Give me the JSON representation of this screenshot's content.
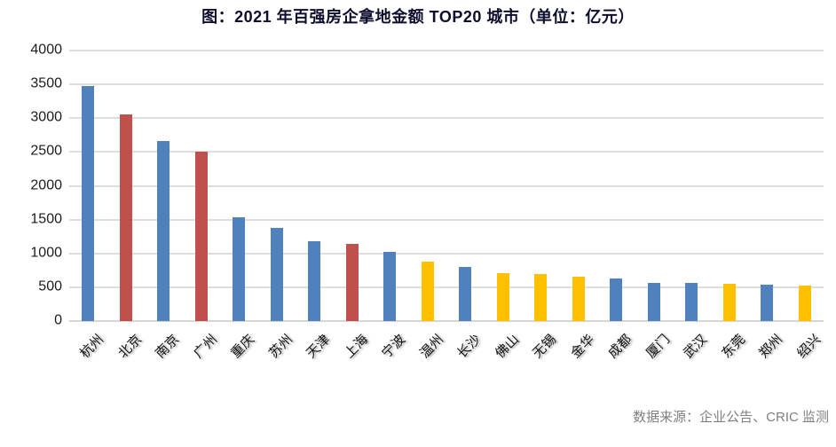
{
  "title": "图：2021 年百强房企拿地金额 TOP20 城市（单位：亿元）",
  "footer": {
    "source": "数据来源：企业公告、CRIC 监测"
  },
  "chart_data": {
    "type": "bar",
    "title": "图：2021 年百强房企拿地金额 TOP20 城市（单位：亿元）",
    "xlabel": "",
    "ylabel": "",
    "unit": "亿元",
    "categories": [
      "杭州",
      "北京",
      "南京",
      "广州",
      "重庆",
      "苏州",
      "天津",
      "上海",
      "宁波",
      "温州",
      "长沙",
      "佛山",
      "无锡",
      "金华",
      "成都",
      "厦门",
      "武汉",
      "东莞",
      "郑州",
      "绍兴"
    ],
    "values": [
      3475,
      3050,
      2660,
      2510,
      1540,
      1380,
      1180,
      1135,
      1020,
      885,
      805,
      710,
      700,
      655,
      630,
      570,
      565,
      545,
      540,
      520
    ],
    "bar_colors": [
      "blue",
      "red",
      "blue",
      "red",
      "blue",
      "blue",
      "blue",
      "red",
      "blue",
      "yellow",
      "blue",
      "yellow",
      "yellow",
      "yellow",
      "blue",
      "blue",
      "blue",
      "yellow",
      "blue",
      "yellow"
    ],
    "palette": {
      "blue": "#4F81BD",
      "red": "#C0504D",
      "yellow": "#FFC000"
    },
    "ylim": [
      0,
      4000
    ],
    "ytick_step": 500,
    "yticks": [
      0,
      500,
      1000,
      1500,
      2000,
      2500,
      3000,
      3500,
      4000
    ],
    "grid": true,
    "legend_position": "none",
    "x_label_rotation_deg": 45,
    "source_note": "数据来源：企业公告、CRIC 监测"
  }
}
